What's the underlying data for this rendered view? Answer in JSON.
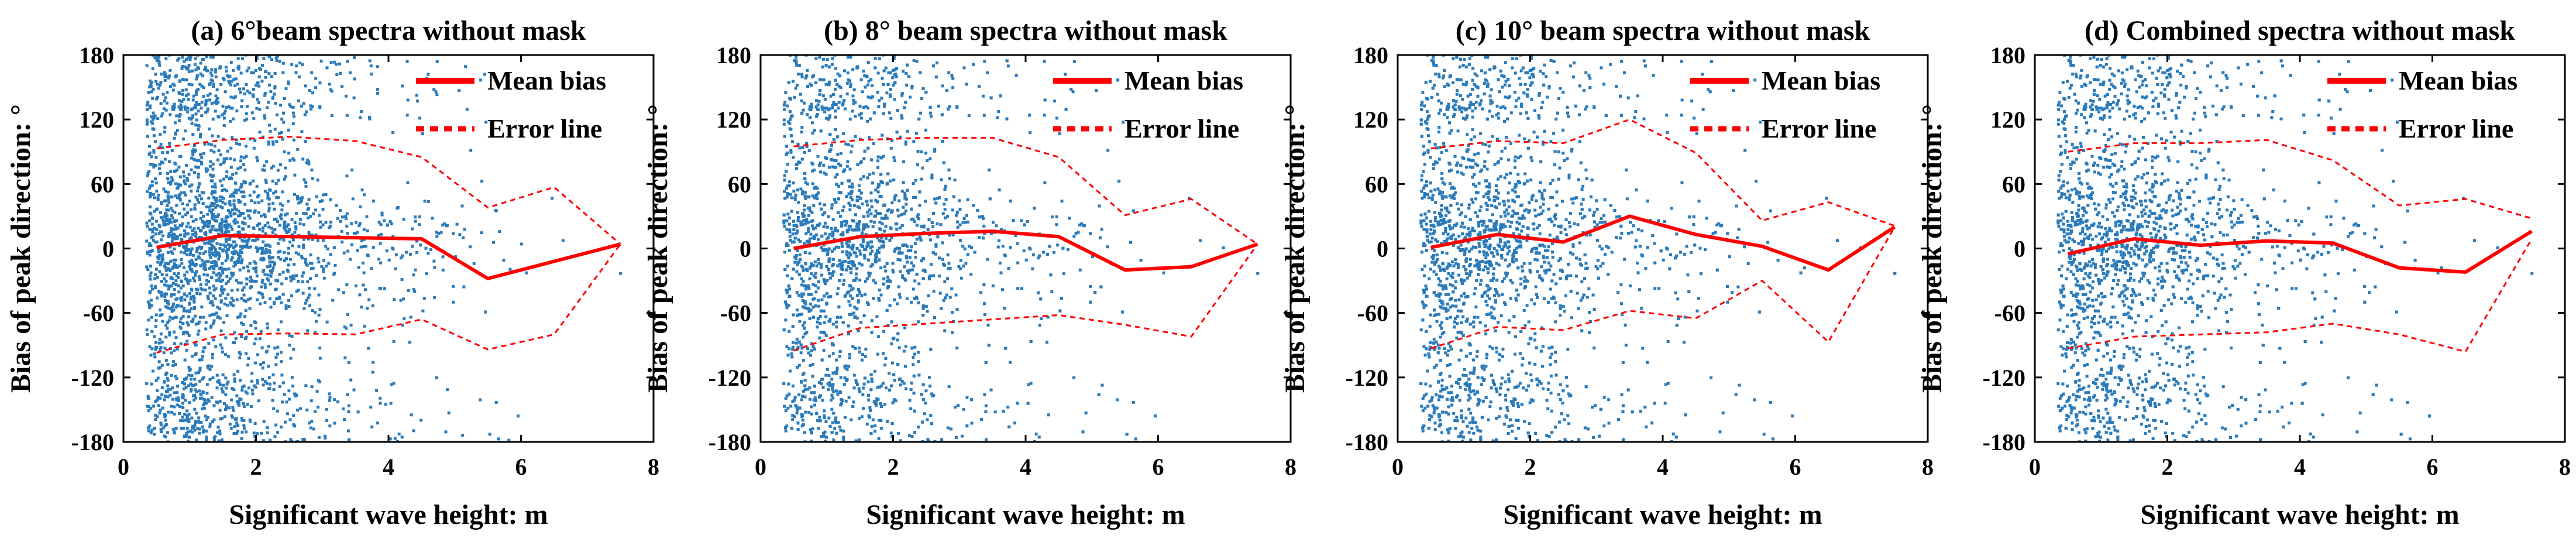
{
  "colors": {
    "scatter": "#2b7bba",
    "mean_line": "#ff0000",
    "error_line": "#ff0000",
    "axes": "#000000",
    "background": "#ffffff"
  },
  "chart_data": [
    {
      "type": "scatter",
      "title": "(a) 6°beam spectra without mask",
      "xlabel": "Significant wave height: m",
      "ylabel": "Bias of peak direction: °",
      "xlim": [
        0,
        8
      ],
      "ylim": [
        -180,
        180
      ],
      "xticks": [
        "0",
        "2",
        "4",
        "6",
        "8"
      ],
      "yticks": [
        "180",
        "120",
        "60",
        "0",
        "-60",
        "-120",
        "-180"
      ],
      "legend": [
        "Mean bias",
        "Error line"
      ],
      "legend_position": "top-right",
      "scatter_note": "dense cloud of individual sample points, heaviest for wave height 0.5–3 m",
      "series": [
        {
          "name": "Mean bias",
          "style": "solid",
          "x": [
            0.5,
            1.5,
            2.5,
            3.5,
            4.5,
            5.5,
            6.5,
            7.5
          ],
          "y": [
            1,
            12,
            11,
            10,
            9,
            -28,
            -12,
            4
          ]
        },
        {
          "name": "Error line upper",
          "style": "dotted",
          "x": [
            0.5,
            1.5,
            2.5,
            3.5,
            4.5,
            5.5,
            6.5,
            7.5
          ],
          "y": [
            93,
            101,
            104,
            100,
            85,
            38,
            57,
            4
          ]
        },
        {
          "name": "Error line lower",
          "style": "dotted",
          "x": [
            0.5,
            1.5,
            2.5,
            3.5,
            4.5,
            5.5,
            6.5,
            7.5
          ],
          "y": [
            -97,
            -80,
            -79,
            -80,
            -66,
            -94,
            -80,
            4
          ]
        }
      ]
    },
    {
      "type": "scatter",
      "title": "(b) 8° beam spectra without mask",
      "xlabel": "Significant wave height: m",
      "ylabel": "Bias of peak direction: °",
      "xlim": [
        0,
        8
      ],
      "ylim": [
        -180,
        180
      ],
      "xticks": [
        "0",
        "2",
        "4",
        "6",
        "8"
      ],
      "yticks": [
        "180",
        "120",
        "60",
        "0",
        "-60",
        "-120",
        "-180"
      ],
      "legend": [
        "Mean bias",
        "Error line"
      ],
      "legend_position": "top-right",
      "scatter_note": "dense cloud of individual sample points, heaviest for wave height 0.5–3 m",
      "series": [
        {
          "name": "Mean bias",
          "style": "solid",
          "x": [
            0.5,
            1.5,
            2.5,
            3.5,
            4.5,
            5.5,
            6.5,
            7.5
          ],
          "y": [
            0,
            11,
            14,
            16,
            11,
            -20,
            -17,
            4
          ]
        },
        {
          "name": "Error line upper",
          "style": "dotted",
          "x": [
            0.5,
            1.5,
            2.5,
            3.5,
            4.5,
            5.5,
            6.5,
            7.5
          ],
          "y": [
            95,
            101,
            103,
            103,
            85,
            31,
            46,
            4
          ]
        },
        {
          "name": "Error line lower",
          "style": "dotted",
          "x": [
            0.5,
            1.5,
            2.5,
            3.5,
            4.5,
            5.5,
            6.5,
            7.5
          ],
          "y": [
            -95,
            -74,
            -70,
            -66,
            -62,
            -71,
            -82,
            4
          ]
        }
      ]
    },
    {
      "type": "scatter",
      "title": "(c) 10° beam spectra without mask",
      "xlabel": "Significant wave height: m",
      "ylabel": "Bias of peak direction: °",
      "xlim": [
        0,
        8
      ],
      "ylim": [
        -180,
        180
      ],
      "xticks": [
        "0",
        "2",
        "4",
        "6",
        "8"
      ],
      "yticks": [
        "180",
        "120",
        "60",
        "0",
        "-60",
        "-120",
        "-180"
      ],
      "legend": [
        "Mean bias",
        "Error line"
      ],
      "legend_position": "top-right",
      "scatter_note": "dense cloud of individual sample points, heaviest for wave height 0.5–3 m",
      "series": [
        {
          "name": "Mean bias",
          "style": "solid",
          "x": [
            0.5,
            1.5,
            2.5,
            3.5,
            4.5,
            5.5,
            6.5,
            7.5
          ],
          "y": [
            1,
            13,
            6,
            30,
            13,
            2,
            -20,
            20
          ]
        },
        {
          "name": "Error line upper",
          "style": "dotted",
          "x": [
            0.5,
            1.5,
            2.5,
            3.5,
            4.5,
            5.5,
            6.5,
            7.5
          ],
          "y": [
            93,
            100,
            98,
            120,
            89,
            26,
            43,
            21
          ]
        },
        {
          "name": "Error line lower",
          "style": "dotted",
          "x": [
            0.5,
            1.5,
            2.5,
            3.5,
            4.5,
            5.5,
            6.5,
            7.5
          ],
          "y": [
            -93,
            -73,
            -76,
            -58,
            -65,
            -30,
            -87,
            20
          ]
        }
      ]
    },
    {
      "type": "scatter",
      "title": "(d) Combined spectra without mask",
      "xlabel": "Significant wave height: m",
      "ylabel": "Bias of peak direction: °",
      "xlim": [
        0,
        8
      ],
      "ylim": [
        -180,
        180
      ],
      "xticks": [
        "0",
        "2",
        "4",
        "6",
        "8"
      ],
      "yticks": [
        "180",
        "120",
        "60",
        "0",
        "-60",
        "-120",
        "-180"
      ],
      "legend": [
        "Mean bias",
        "Error line"
      ],
      "legend_position": "top-right",
      "scatter_note": "dense cloud of individual sample points, heaviest for wave height 0.5–3 m",
      "series": [
        {
          "name": "Mean bias",
          "style": "solid",
          "x": [
            0.5,
            1.5,
            2.5,
            3.5,
            4.5,
            5.5,
            6.5,
            7.5
          ],
          "y": [
            -5,
            9,
            3,
            7,
            5,
            -18,
            -22,
            16
          ]
        },
        {
          "name": "Error line upper",
          "style": "dotted",
          "x": [
            0.5,
            1.5,
            2.5,
            3.5,
            4.5,
            5.5,
            6.5,
            7.5
          ],
          "y": [
            90,
            98,
            98,
            101,
            82,
            40,
            46,
            28
          ]
        },
        {
          "name": "Error line lower",
          "style": "dotted",
          "x": [
            0.5,
            1.5,
            2.5,
            3.5,
            4.5,
            5.5,
            6.5,
            7.5
          ],
          "y": [
            -93,
            -82,
            -80,
            -78,
            -70,
            -80,
            -96,
            9
          ]
        }
      ]
    }
  ]
}
